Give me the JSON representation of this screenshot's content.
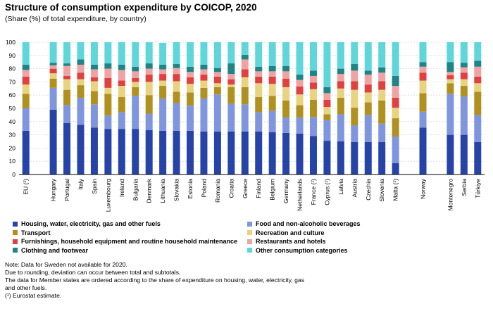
{
  "title": "Structure of consumption expenditure by COICOP, 2020",
  "subtitle": "(Share (%) of total expenditure,  by country)",
  "colors": {
    "housing": "#2644A7",
    "food": "#7F96DE",
    "transport": "#B09120",
    "recreation": "#E8D380",
    "furnishings": "#E04040",
    "restaurants": "#F0A3A3",
    "clothing": "#208486",
    "other": "#5FD6DA"
  },
  "chart_data": {
    "type": "bar",
    "stacked": true,
    "ylim": [
      0,
      100
    ],
    "yticks": [
      0,
      10,
      20,
      30,
      40,
      50,
      60,
      70,
      80,
      90,
      100
    ],
    "grid": true,
    "categories": [
      "EU (¹)",
      "",
      "Hungary",
      "Portugal",
      "Italy",
      "Spain",
      "Luxembourg",
      "Ireland",
      "Bulgaria",
      "Denmark",
      "Lithuania",
      "Slovakia",
      "Estonia",
      "Poland",
      "Romania",
      "Croatia",
      "Greece",
      "Finland",
      "Belgium",
      "Germany",
      "Netherlands",
      "France (¹)",
      "Cyprus (¹)",
      "Latvia",
      "Austria",
      "Czechia",
      "Slovenia",
      "Malta (¹)",
      "",
      "Norway",
      "",
      "Montenegro",
      "Serbia",
      "Türkiye"
    ],
    "series": [
      {
        "key": "housing",
        "name": "Housing, water, electricity, gas and other fuels",
        "values": [
          33,
          null,
          49,
          39,
          37.5,
          35.5,
          34.5,
          34.5,
          34.5,
          33.5,
          33,
          33,
          33,
          32.5,
          32.5,
          32.5,
          32.5,
          32.5,
          32,
          31.5,
          31,
          29,
          25.5,
          25,
          24.5,
          24.5,
          24.5,
          8.5,
          null,
          35.5,
          null,
          30,
          30,
          24.5
        ]
      },
      {
        "key": "food",
        "name": "Food and non-alcoholic beverages",
        "values": [
          17,
          null,
          16.5,
          13.5,
          20.5,
          17.5,
          10,
          12.5,
          25,
          12.5,
          24.5,
          21,
          19,
          25,
          28,
          21,
          20.5,
          14.5,
          16,
          11.5,
          12,
          14.5,
          15.5,
          20.5,
          12.5,
          20.5,
          14,
          20,
          null,
          12,
          null,
          31,
          29,
          20.5
        ]
      },
      {
        "key": "transport",
        "name": "Transport",
        "values": [
          11,
          null,
          7,
          11.5,
          9.5,
          10,
          16.5,
          11.5,
          6.5,
          14,
          9.5,
          8.5,
          10,
          8,
          5.5,
          12.5,
          13,
          11.5,
          11.5,
          13,
          9.5,
          13,
          4.5,
          12.5,
          13.5,
          9.5,
          17.5,
          14,
          null,
          14,
          null,
          8,
          8,
          17.5
        ]
      },
      {
        "key": "recreation",
        "name": "Recreation and culture",
        "values": [
          7,
          null,
          4,
          8,
          4.5,
          7.5,
          4.5,
          8.5,
          4,
          10,
          4,
          8,
          6.5,
          5.5,
          3,
          2,
          7.5,
          10.5,
          9,
          10,
          8,
          8,
          5.5,
          7,
          13.5,
          7.5,
          8,
          8,
          null,
          9.5,
          null,
          3,
          5,
          6.5
        ]
      },
      {
        "key": "furnishings",
        "name": "Furnishings, household equipment and routine household maintenance",
        "values": [
          6,
          null,
          3.5,
          2.5,
          5,
          3,
          7.5,
          4,
          3,
          5.5,
          5,
          5.5,
          5,
          4.5,
          5,
          4,
          6,
          5,
          5.5,
          6.5,
          6,
          5,
          5.5,
          5.5,
          6.5,
          6,
          6.5,
          7.5,
          null,
          6,
          null,
          3,
          5,
          5
        ]
      },
      {
        "key": "restaurants",
        "name": "Restaurants and hotels",
        "values": [
          5,
          null,
          2.5,
          7.5,
          6,
          6,
          7,
          8,
          5,
          4.5,
          3.5,
          4.5,
          4,
          4,
          3.5,
          4,
          7.5,
          4,
          4,
          5.5,
          5,
          5,
          5,
          5.5,
          8,
          7.5,
          6.5,
          9,
          null,
          4.5,
          null,
          2.5,
          4,
          7.5
        ]
      },
      {
        "key": "clothing",
        "name": "Clothing and footwear",
        "values": [
          4,
          null,
          2,
          2,
          4,
          3.5,
          4,
          4,
          3.5,
          4,
          3.5,
          3,
          4,
          3.5,
          3,
          8,
          3.5,
          3.5,
          4,
          4,
          4,
          4,
          4.5,
          4,
          5,
          3,
          4,
          7.5,
          null,
          3.5,
          null,
          7.5,
          3.5,
          4.5
        ]
      },
      {
        "key": "other",
        "name": "Other consumption categories",
        "values": [
          17,
          null,
          15.5,
          16,
          13,
          17,
          16,
          17,
          18.5,
          16,
          16.5,
          16.5,
          18.5,
          17,
          19.5,
          16,
          9.5,
          18.5,
          18,
          18,
          24.5,
          21.5,
          34,
          20,
          16.5,
          21.5,
          19,
          25.5,
          null,
          15,
          null,
          15,
          15.5,
          14
        ]
      }
    ]
  },
  "legend": [
    {
      "key": "housing",
      "label": "Housing, water, electricity, gas and other fuels"
    },
    {
      "key": "food",
      "label": "Food and non-alcoholic beverages"
    },
    {
      "key": "transport",
      "label": "Transport"
    },
    {
      "key": "recreation",
      "label": "Recreation and culture"
    },
    {
      "key": "furnishings",
      "label": "Furnishings, household equipment and routine household maintenance"
    },
    {
      "key": "restaurants",
      "label": "Restaurants and hotels"
    },
    {
      "key": "clothing",
      "label": "Clothing and footwear"
    },
    {
      "key": "other",
      "label": "Other consumption categories"
    }
  ],
  "notes": [
    "Note: Data for Sweden not available for 2020.",
    "Due to rounding, deviation can occur between total and subtotals.",
    "The data for Member states are ordered according to the share of expenditure on housing, water, electricity, gas",
    "and other fuels.",
    "(¹) Eurostat estimate."
  ]
}
